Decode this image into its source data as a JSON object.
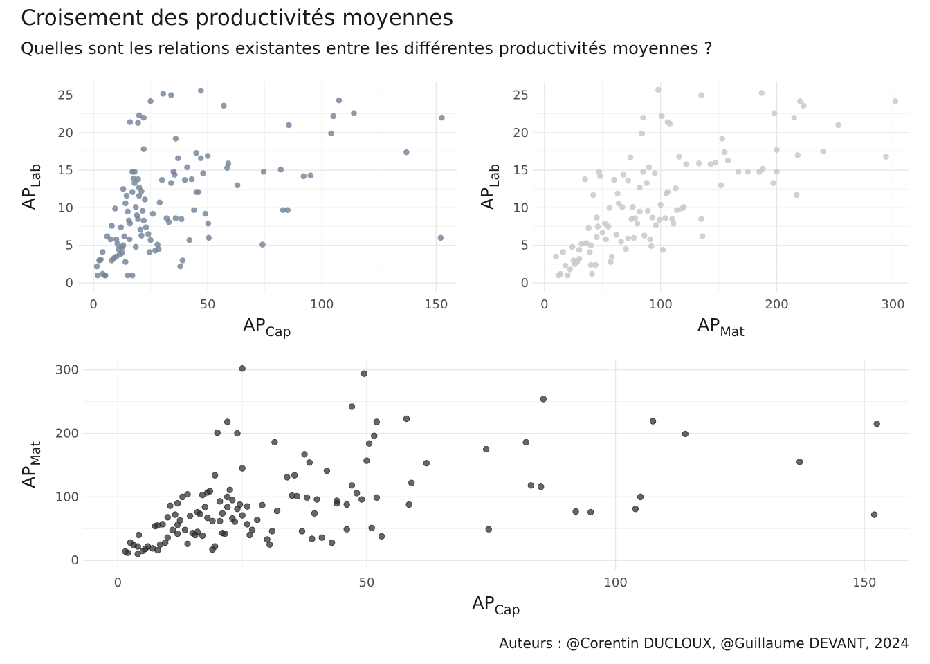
{
  "title": "Croisement des productivités moyennes",
  "subtitle": "Quelles sont les relations existantes entre les différentes productivités moyennes ?",
  "caption": "Auteurs : @Corentin DUCLOUX, @Guillaume DEVANT, 2024",
  "chart_data": [
    {
      "type": "scatter",
      "xlabel": {
        "main": "AP",
        "sub": "Cap"
      },
      "ylabel": {
        "main": "AP",
        "sub": "Lab"
      },
      "xlim": [
        -7,
        159
      ],
      "ylim": [
        -1.2,
        26.8
      ],
      "xticks": [
        0,
        50,
        100,
        150
      ],
      "yticks": [
        0,
        5,
        10,
        15,
        20,
        25
      ],
      "grid": true,
      "point_color": "#6f8197",
      "points": [
        [
          1.8,
          1
        ],
        [
          4,
          1.2
        ],
        [
          5.2,
          1
        ],
        [
          1.5,
          2.2
        ],
        [
          2.5,
          3
        ],
        [
          3.2,
          3.1
        ],
        [
          4,
          4.1
        ],
        [
          8,
          3
        ],
        [
          9,
          3.3
        ],
        [
          7.5,
          5.8
        ],
        [
          6,
          6.2
        ],
        [
          8,
          7.6
        ],
        [
          9.5,
          9.9
        ],
        [
          12,
          7.4
        ],
        [
          10.5,
          5.2
        ],
        [
          11,
          4.5
        ],
        [
          12.5,
          4.7
        ],
        [
          13,
          12.5
        ],
        [
          14,
          10.6
        ],
        [
          14.5,
          11.6
        ],
        [
          15,
          9.5
        ],
        [
          15.5,
          8.3
        ],
        [
          13.5,
          6.2
        ],
        [
          15.8,
          5.8
        ],
        [
          16,
          7.9
        ],
        [
          17,
          12.1
        ],
        [
          17.5,
          13.9
        ],
        [
          18,
          14.8
        ],
        [
          18.5,
          10.1
        ],
        [
          19,
          9
        ],
        [
          19.5,
          8.5
        ],
        [
          20,
          12.7
        ],
        [
          20.5,
          7.1
        ],
        [
          21,
          6.3
        ],
        [
          21.5,
          9.6
        ],
        [
          22,
          8.3
        ],
        [
          22.5,
          11.1
        ],
        [
          23,
          7.4
        ],
        [
          17,
          14.8
        ],
        [
          18,
          13.3
        ],
        [
          19.5,
          13.8
        ],
        [
          20,
          11.6
        ],
        [
          21,
          12.2
        ],
        [
          24,
          6.5
        ],
        [
          22,
          17.8
        ],
        [
          24.5,
          4.1
        ],
        [
          25,
          5.7
        ],
        [
          26,
          9.2
        ],
        [
          27,
          4.3
        ],
        [
          28,
          5.1
        ],
        [
          28.5,
          4.5
        ],
        [
          29,
          10.7
        ],
        [
          30,
          13.7
        ],
        [
          32,
          8.6
        ],
        [
          33,
          8.1
        ],
        [
          34,
          13.3
        ],
        [
          35,
          14.8
        ],
        [
          35.5,
          14.4
        ],
        [
          36,
          8.6
        ],
        [
          37,
          16.6
        ],
        [
          38,
          2.2
        ],
        [
          38.5,
          8.5
        ],
        [
          39,
          3
        ],
        [
          40,
          13.7
        ],
        [
          41,
          15.4
        ],
        [
          43,
          13.8
        ],
        [
          44,
          9.7
        ],
        [
          45,
          12.1
        ],
        [
          46,
          12.1
        ],
        [
          45,
          17.3
        ],
        [
          47,
          16.6
        ],
        [
          48,
          14.6
        ],
        [
          49,
          9.2
        ],
        [
          50,
          16.9
        ],
        [
          50.5,
          6
        ],
        [
          50.2,
          7.9
        ],
        [
          42,
          5.7
        ],
        [
          36,
          19.2
        ],
        [
          16,
          21.4
        ],
        [
          19.5,
          21.3
        ],
        [
          20,
          22.3
        ],
        [
          22,
          22
        ],
        [
          25,
          24.2
        ],
        [
          30.5,
          25.2
        ],
        [
          34,
          25
        ],
        [
          47,
          25.6
        ],
        [
          57,
          23.6
        ],
        [
          59,
          15.9
        ],
        [
          58.5,
          15.3
        ],
        [
          63,
          13
        ],
        [
          74,
          5.1
        ],
        [
          74.5,
          14.8
        ],
        [
          82,
          15.1
        ],
        [
          83,
          9.7
        ],
        [
          85,
          9.7
        ],
        [
          85.5,
          21
        ],
        [
          92,
          14.2
        ],
        [
          95,
          14.3
        ],
        [
          104,
          19.9
        ],
        [
          105,
          22.2
        ],
        [
          107.5,
          24.3
        ],
        [
          114,
          22.6
        ],
        [
          137,
          17.4
        ],
        [
          152,
          6
        ],
        [
          152.5,
          22
        ],
        [
          5,
          1
        ],
        [
          12.5,
          4
        ],
        [
          11.5,
          3.8
        ],
        [
          14,
          2.8
        ],
        [
          15,
          1
        ],
        [
          17,
          1
        ],
        [
          18.5,
          4.8
        ],
        [
          10,
          3.5
        ],
        [
          10,
          5.8
        ],
        [
          13,
          5
        ]
      ]
    },
    {
      "type": "scatter",
      "xlabel": {
        "main": "AP",
        "sub": "Mat"
      },
      "ylabel": {
        "main": "AP",
        "sub": "Lab"
      },
      "xlim": [
        -10,
        314
      ],
      "ylim": [
        -1.2,
        26.8
      ],
      "xticks": [
        0,
        100,
        200,
        300
      ],
      "yticks": [
        0,
        5,
        10,
        15,
        20,
        25
      ],
      "grid": true,
      "point_color": "#c9c9c9",
      "points": [
        [
          10,
          3.5
        ],
        [
          12,
          1
        ],
        [
          14,
          1.2
        ],
        [
          16,
          4.1
        ],
        [
          18,
          2.3
        ],
        [
          20,
          1
        ],
        [
          22,
          1.8
        ],
        [
          24,
          4.8
        ],
        [
          25,
          3
        ],
        [
          26,
          2.5
        ],
        [
          28,
          2.8
        ],
        [
          30,
          4.4
        ],
        [
          30,
          3.2
        ],
        [
          32,
          5.2
        ],
        [
          35,
          13.8
        ],
        [
          36,
          5.3
        ],
        [
          38,
          7.3
        ],
        [
          39,
          4.1
        ],
        [
          40,
          5
        ],
        [
          40,
          2.4
        ],
        [
          41,
          1.2
        ],
        [
          42,
          11.7
        ],
        [
          44,
          2.4
        ],
        [
          45,
          6.1
        ],
        [
          45,
          8.7
        ],
        [
          46,
          7.5
        ],
        [
          47,
          14.8
        ],
        [
          48,
          14.2
        ],
        [
          50,
          6.7
        ],
        [
          52,
          7.9
        ],
        [
          53,
          5.8
        ],
        [
          55,
          7.5
        ],
        [
          56,
          10
        ],
        [
          57,
          2.8
        ],
        [
          58,
          3.5
        ],
        [
          60,
          13.7
        ],
        [
          62,
          6.4
        ],
        [
          63,
          11.9
        ],
        [
          64,
          10.6
        ],
        [
          66,
          5.5
        ],
        [
          67,
          10.1
        ],
        [
          68,
          14.4
        ],
        [
          70,
          4.5
        ],
        [
          72,
          5.9
        ],
        [
          72,
          13.6
        ],
        [
          74,
          16.7
        ],
        [
          75,
          8.5
        ],
        [
          76,
          10.1
        ],
        [
          77,
          6
        ],
        [
          78,
          8.6
        ],
        [
          80,
          7.9
        ],
        [
          82,
          9.5
        ],
        [
          82,
          12.7
        ],
        [
          84,
          19.9
        ],
        [
          85,
          22
        ],
        [
          85,
          14.8
        ],
        [
          86,
          6.3
        ],
        [
          88,
          13.3
        ],
        [
          89,
          9.6
        ],
        [
          90,
          15.4
        ],
        [
          91,
          5.8
        ],
        [
          92,
          4.9
        ],
        [
          93,
          8.7
        ],
        [
          95,
          14.6
        ],
        [
          96,
          7.7
        ],
        [
          98,
          25.7
        ],
        [
          99,
          8.4
        ],
        [
          100,
          10.4
        ],
        [
          101,
          22.2
        ],
        [
          102,
          4.4
        ],
        [
          104,
          8.6
        ],
        [
          105,
          11.9
        ],
        [
          106,
          12.1
        ],
        [
          106,
          21.4
        ],
        [
          108,
          21.2
        ],
        [
          110,
          8.5
        ],
        [
          111,
          7.9
        ],
        [
          113,
          12.6
        ],
        [
          114,
          9.7
        ],
        [
          116,
          16.8
        ],
        [
          118,
          9.9
        ],
        [
          120,
          10.1
        ],
        [
          122,
          15.8
        ],
        [
          133,
          15.9
        ],
        [
          135,
          25
        ],
        [
          135,
          8.5
        ],
        [
          136,
          6.2
        ],
        [
          143,
          15.8
        ],
        [
          147,
          16
        ],
        [
          152,
          13
        ],
        [
          153,
          19.2
        ],
        [
          155,
          17.4
        ],
        [
          158,
          16.3
        ],
        [
          167,
          14.8
        ],
        [
          175,
          14.8
        ],
        [
          185,
          14.8
        ],
        [
          187,
          25.3
        ],
        [
          188,
          15.2
        ],
        [
          197,
          13.3
        ],
        [
          198,
          22.6
        ],
        [
          200,
          14.8
        ],
        [
          200,
          17.7
        ],
        [
          215,
          22
        ],
        [
          217,
          11.7
        ],
        [
          218,
          17
        ],
        [
          220,
          24.2
        ],
        [
          223,
          23.6
        ],
        [
          240,
          17.5
        ],
        [
          253,
          21
        ],
        [
          294,
          16.8
        ],
        [
          302,
          24.2
        ]
      ]
    },
    {
      "type": "scatter",
      "xlabel": {
        "main": "AP",
        "sub": "Cap"
      },
      "ylabel": {
        "main": "AP",
        "sub": "Mat"
      },
      "xlim": [
        -7,
        159
      ],
      "ylim": [
        -15,
        316
      ],
      "xticks": [
        0,
        50,
        100,
        150
      ],
      "yticks": [
        0,
        100,
        200,
        300
      ],
      "grid": true,
      "point_color": "#333333",
      "points": [
        [
          1.5,
          14
        ],
        [
          2,
          12
        ],
        [
          2.5,
          28
        ],
        [
          3.2,
          24
        ],
        [
          4,
          10
        ],
        [
          4,
          22
        ],
        [
          4.2,
          40
        ],
        [
          5,
          15
        ],
        [
          5.5,
          18
        ],
        [
          6,
          22
        ],
        [
          7,
          19
        ],
        [
          7.5,
          54
        ],
        [
          8,
          16
        ],
        [
          8,
          55
        ],
        [
          8.5,
          25
        ],
        [
          9,
          57
        ],
        [
          9.5,
          28
        ],
        [
          10,
          36
        ],
        [
          10,
          68
        ],
        [
          10.5,
          86
        ],
        [
          11,
          48
        ],
        [
          11.5,
          72
        ],
        [
          12,
          42
        ],
        [
          12,
          56
        ],
        [
          12.5,
          63
        ],
        [
          12,
          90
        ],
        [
          13,
          100
        ],
        [
          13.5,
          48
        ],
        [
          14,
          26
        ],
        [
          14,
          104
        ],
        [
          14.5,
          70
        ],
        [
          15,
          43
        ],
        [
          15.5,
          40
        ],
        [
          16,
          45
        ],
        [
          16,
          76
        ],
        [
          16.5,
          73
        ],
        [
          17,
          39
        ],
        [
          17,
          103
        ],
        [
          17.5,
          84
        ],
        [
          18,
          67
        ],
        [
          18,
          107
        ],
        [
          18.5,
          109
        ],
        [
          19,
          62
        ],
        [
          19,
          17
        ],
        [
          19.5,
          22
        ],
        [
          19.5,
          134
        ],
        [
          20,
          201
        ],
        [
          20.5,
          62
        ],
        [
          20.5,
          93
        ],
        [
          21,
          43
        ],
        [
          21,
          74
        ],
        [
          21.5,
          42
        ],
        [
          22,
          84
        ],
        [
          22,
          100
        ],
        [
          22.5,
          111
        ],
        [
          23,
          66
        ],
        [
          23,
          95
        ],
        [
          23.5,
          61
        ],
        [
          22,
          218
        ],
        [
          24,
          81
        ],
        [
          24,
          200
        ],
        [
          24.5,
          88
        ],
        [
          25,
          71
        ],
        [
          25,
          302
        ],
        [
          26,
          57
        ],
        [
          26,
          85
        ],
        [
          25,
          145
        ],
        [
          26.5,
          40
        ],
        [
          27,
          48
        ],
        [
          28,
          64
        ],
        [
          29,
          87
        ],
        [
          30,
          33
        ],
        [
          30.5,
          25
        ],
        [
          31,
          46
        ],
        [
          32,
          78
        ],
        [
          31.5,
          186
        ],
        [
          34,
          131
        ],
        [
          35,
          102
        ],
        [
          35.5,
          134
        ],
        [
          36,
          101
        ],
        [
          37,
          46
        ],
        [
          37.5,
          167
        ],
        [
          38,
          99
        ],
        [
          38.5,
          154
        ],
        [
          39,
          34
        ],
        [
          39.5,
          74
        ],
        [
          40,
          96
        ],
        [
          41,
          36
        ],
        [
          42,
          141
        ],
        [
          43,
          28
        ],
        [
          44,
          94
        ],
        [
          44,
          90
        ],
        [
          46,
          49
        ],
        [
          46,
          88
        ],
        [
          47,
          242
        ],
        [
          47,
          118
        ],
        [
          48,
          106
        ],
        [
          49,
          96
        ],
        [
          49.5,
          294
        ],
        [
          50,
          157
        ],
        [
          50.5,
          184
        ],
        [
          51,
          51
        ],
        [
          52,
          218
        ],
        [
          52,
          99
        ],
        [
          51.5,
          196
        ],
        [
          53,
          38
        ],
        [
          58,
          223
        ],
        [
          58.5,
          88
        ],
        [
          59,
          122
        ],
        [
          62,
          153
        ],
        [
          74,
          175
        ],
        [
          74.5,
          49
        ],
        [
          82,
          186
        ],
        [
          83,
          118
        ],
        [
          85,
          116
        ],
        [
          85.5,
          254
        ],
        [
          92,
          77
        ],
        [
          95,
          76
        ],
        [
          104,
          81
        ],
        [
          105,
          100
        ],
        [
          107.5,
          219
        ],
        [
          114,
          199
        ],
        [
          137,
          155
        ],
        [
          152,
          72
        ],
        [
          152.5,
          215
        ]
      ]
    }
  ]
}
